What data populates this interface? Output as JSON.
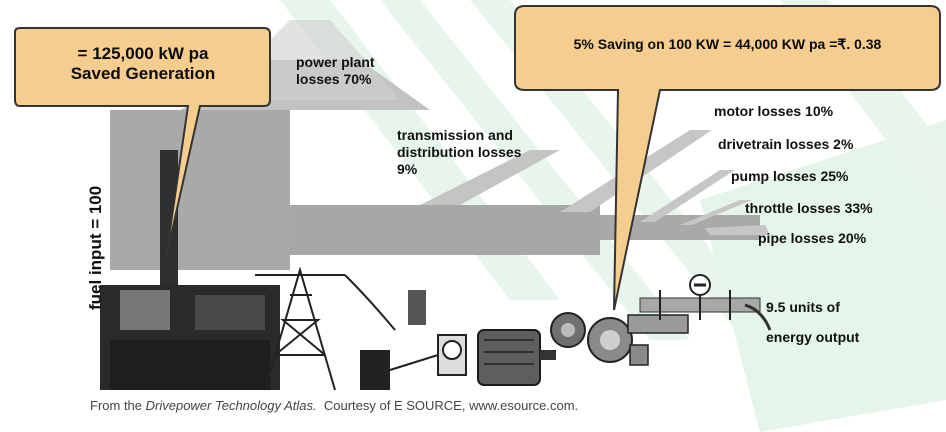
{
  "colors": {
    "callout_fill": "#f4cd8f",
    "callout_stroke": "#333333",
    "flow_band": "#b8b8b8",
    "background_stripes": "#dff2e3"
  },
  "callouts": {
    "left": {
      "line1": "= 125,000 kW pa",
      "line2": "Saved Generation"
    },
    "right": {
      "text": "5% Saving on 100 KW = 44,000 KW pa =₹. 0.38"
    }
  },
  "fuel_input": "fuel input = 100",
  "losses": {
    "power_plant": {
      "line1": "power plant",
      "line2": "losses 70%"
    },
    "transmission": {
      "line1": "transmission and",
      "line2": "distribution losses",
      "line3": "9%"
    },
    "motor": "motor losses 10%",
    "drivetrain": "drivetrain losses 2%",
    "pump": "pump losses 25%",
    "throttle": "throttle losses 33%",
    "pipe": "pipe losses 20%"
  },
  "output": {
    "line1": "9.5 units of",
    "line2": "energy output"
  },
  "caption": {
    "prefix": "From the ",
    "source_title": "Drivepower Technology Atlas.",
    "suffix": "  Courtesy of E SOURCE, www.esource.com."
  }
}
